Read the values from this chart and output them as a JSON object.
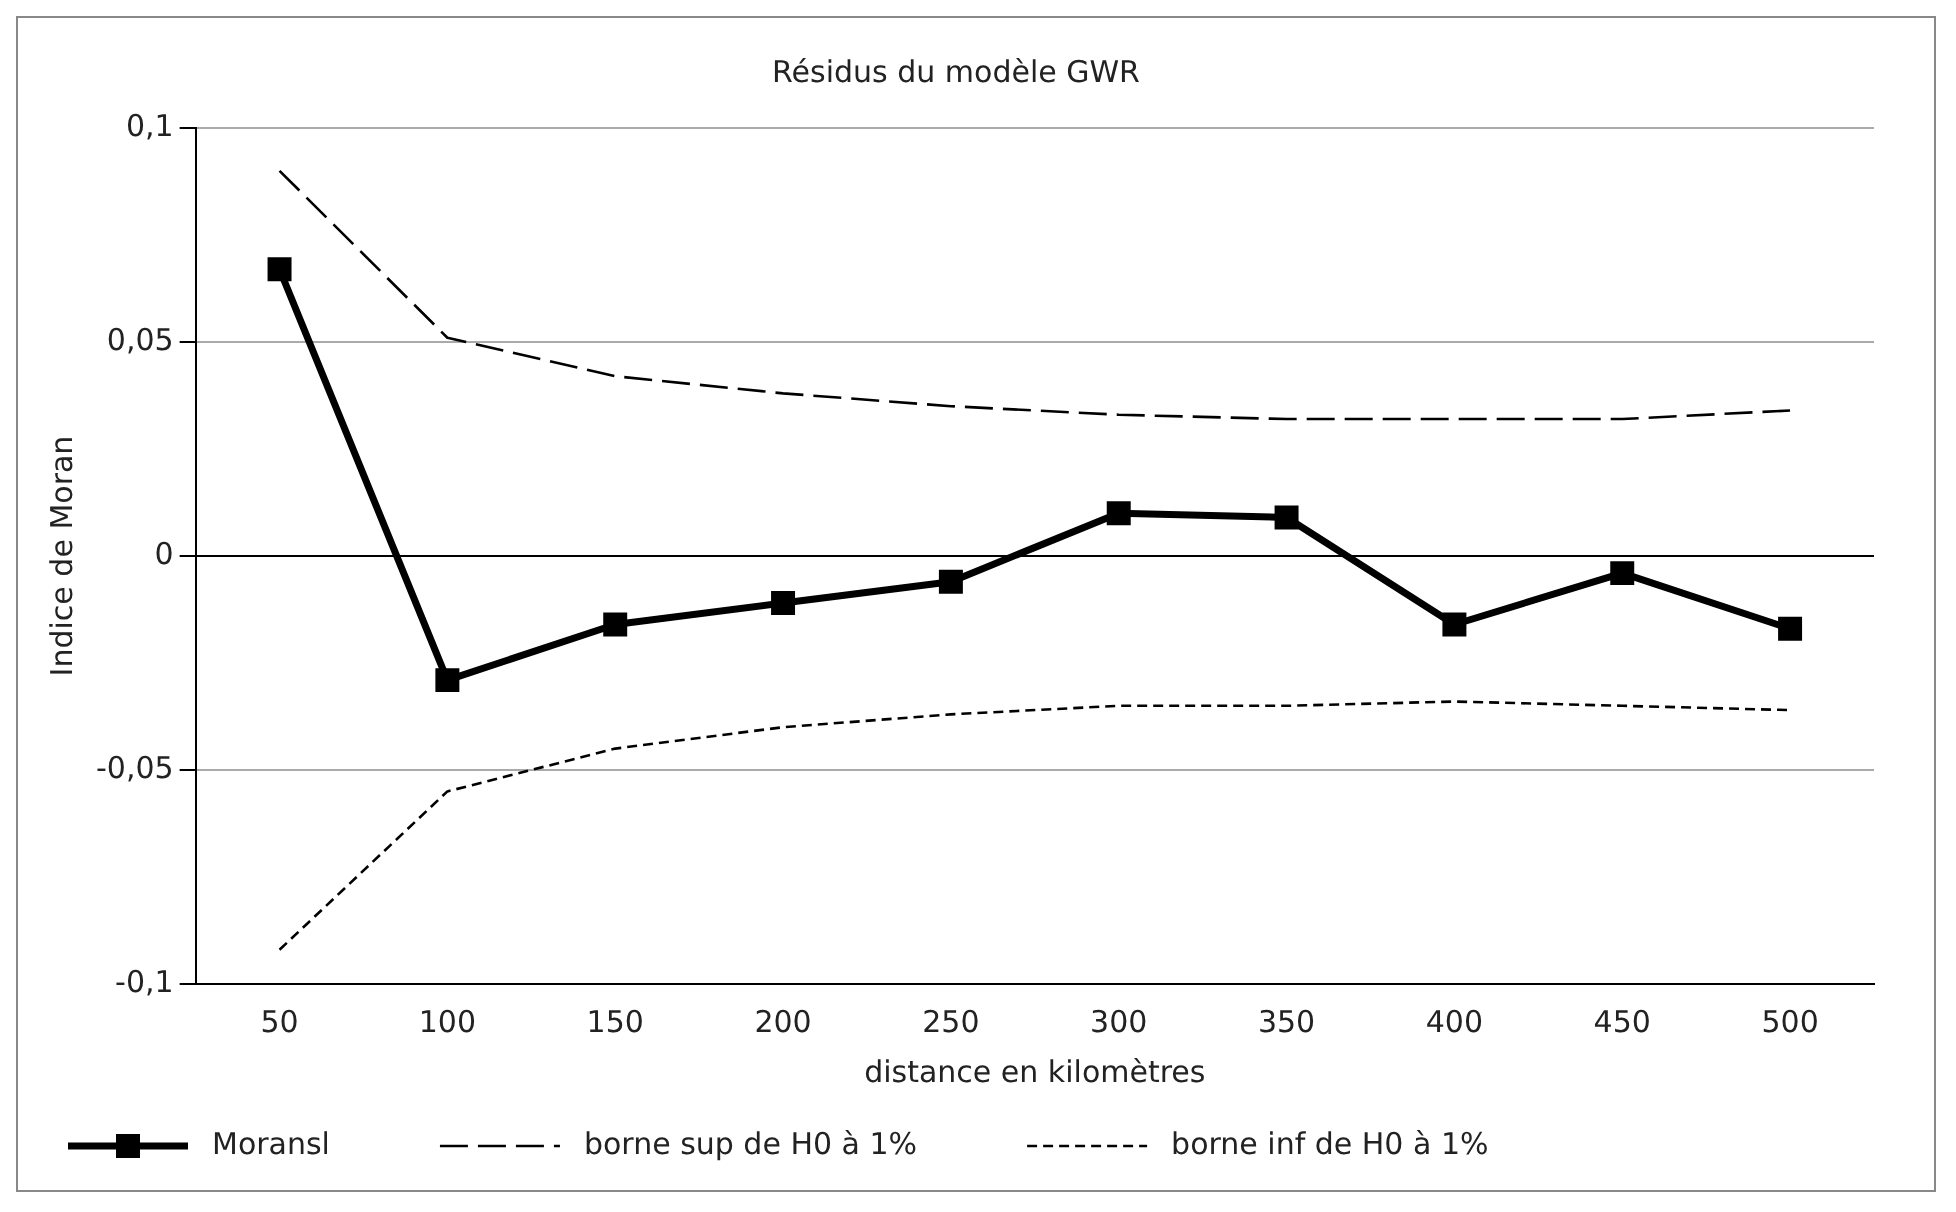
{
  "chart_data": {
    "type": "line",
    "title": "Résidus du modèle GWR",
    "xlabel": "distance en kilomètres",
    "ylabel": "Indice de Moran",
    "categories": [
      "50",
      "100",
      "150",
      "200",
      "250",
      "300",
      "350",
      "400",
      "450",
      "500"
    ],
    "series": [
      {
        "name": "Moransl",
        "color": "#000000",
        "marker": "square",
        "line_style": "solid",
        "values": [
          0.067,
          -0.029,
          -0.016,
          -0.011,
          -0.006,
          0.01,
          0.009,
          -0.016,
          -0.004,
          -0.017
        ]
      },
      {
        "name": "borne sup de H0 à 1%",
        "color": "#000000",
        "marker": "none",
        "line_style": "dashed",
        "values": [
          0.09,
          0.051,
          0.042,
          0.038,
          0.035,
          0.033,
          0.032,
          0.032,
          0.032,
          0.034
        ]
      },
      {
        "name": "borne inf de H0 à 1%",
        "color": "#000000",
        "marker": "none",
        "line_style": "dotted",
        "values": [
          -0.092,
          -0.055,
          -0.045,
          -0.04,
          -0.037,
          -0.035,
          -0.035,
          -0.034,
          -0.035,
          -0.036
        ]
      }
    ],
    "ylim": [
      -0.1,
      0.1
    ],
    "yticks": [
      {
        "value": -0.1,
        "label": "-0,1"
      },
      {
        "value": -0.05,
        "label": "-0,05"
      },
      0,
      {
        "value": 0.05,
        "label": "0,05"
      },
      {
        "value": 0.1,
        "label": "0,1"
      }
    ],
    "grid": "y",
    "legend": "bottom"
  }
}
